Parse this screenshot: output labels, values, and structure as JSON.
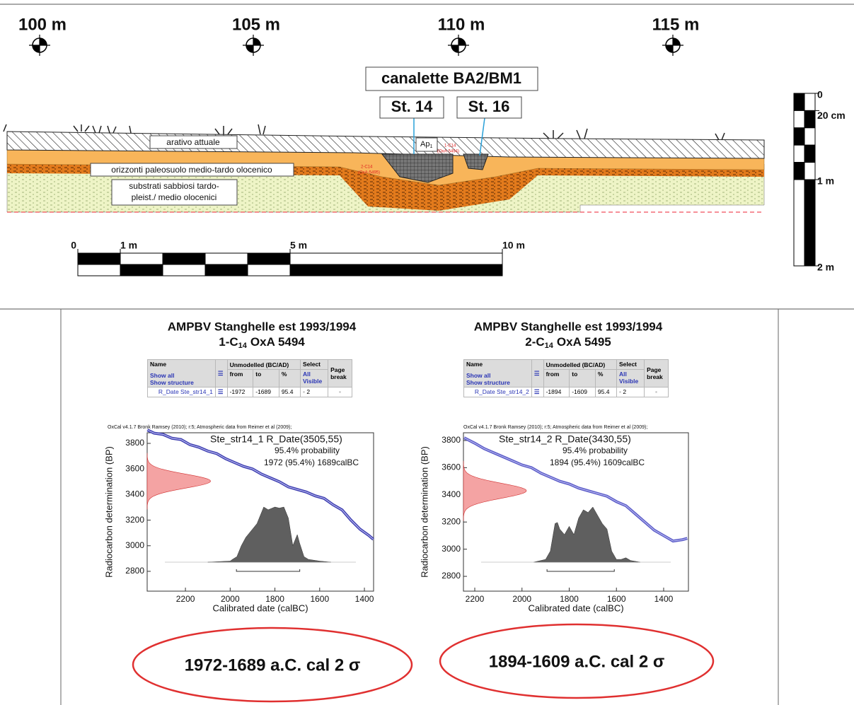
{
  "section": {
    "distance_labels": [
      "100 m",
      "105 m",
      "110 m",
      "115 m"
    ],
    "title": "canalette BA2/BM1",
    "structures": [
      "St. 14",
      "St. 16"
    ],
    "layer_labels": [
      "arativo  attuale",
      "orizzonti paleosuolo medio-tardo olocenico"
    ],
    "substrate_label": [
      "substrati sabbiosi tardo-",
      "pleist./ medio olocenici"
    ],
    "ap_label": {
      "main": "Ap",
      "sub": "1"
    },
    "sample_labels": [
      {
        "name": "1-C14",
        "lab": "(OxA-5494)"
      },
      {
        "name": "2-C14",
        "lab": "(OxA-5495)"
      }
    ],
    "scale_bar": {
      "ticks": [
        0,
        {
          "value": 1,
          "label": "1 m"
        },
        {
          "value": 5,
          "label": "5 m"
        },
        {
          "value": 10,
          "label": "10 m"
        }
      ]
    },
    "vertical_scale": {
      "ticks": [
        0,
        {
          "value": 0.2,
          "label": "20 cm"
        },
        {
          "value": 1,
          "label": "1 m"
        },
        {
          "value": 2,
          "label": "2 m"
        }
      ]
    }
  },
  "chart_data": [
    {
      "type": "calibration",
      "title": "AMPBV Stanghelle est 1993/1994",
      "subtitle": {
        "prefix": "1-C",
        "sub": "14",
        "rest": "OxA 5494"
      },
      "table": {
        "name_header": "Name",
        "show_all": "Show all",
        "show_structure": "Show structure",
        "unmodelled": "Unmodelled (BC/AD)",
        "from": "from",
        "to": "to",
        "pct": "%",
        "select": "Select",
        "all": "All",
        "visible": "Visible",
        "page": "Page",
        "brk": "break",
        "row": {
          "name": "R_Date Ste_str14_1",
          "from": -1972,
          "to": -1689,
          "pct": 95.4,
          "select": 2
        }
      },
      "credit": "OxCal v4.1.7 Bronk Ramsey (2010); r:5; Atmospheric data from Reimer et al (2009);",
      "annotations": [
        "Ste_str14_1 R_Date(3505,55)",
        "95.4% probability",
        "1972 (95.4%) 1689calBC"
      ],
      "x_label": "Calibrated date (calBC)",
      "y_label": "Radiocarbon determination (BP)",
      "xlim": [
        2371,
        1359
      ],
      "xticks": [
        2200,
        2000,
        1800,
        1600,
        1400
      ],
      "ylim": [
        2645,
        3883
      ],
      "yticks": [
        2800,
        3000,
        3200,
        3400,
        3600,
        3800
      ],
      "curve": {
        "color": "#3d3db0",
        "x": [
          2370,
          2340,
          2300,
          2260,
          2220,
          2180,
          2140,
          2100,
          2060,
          2020,
          1980,
          1940,
          1900,
          1860,
          1820,
          1780,
          1740,
          1700,
          1660,
          1620,
          1580,
          1540,
          1500,
          1460,
          1420,
          1380,
          1360
        ],
        "y": [
          3905,
          3880,
          3870,
          3840,
          3830,
          3790,
          3770,
          3740,
          3720,
          3680,
          3650,
          3620,
          3600,
          3560,
          3530,
          3500,
          3460,
          3440,
          3420,
          3390,
          3370,
          3320,
          3280,
          3200,
          3130,
          3080,
          3050
        ]
      },
      "measurement": {
        "mean": 3505,
        "sd": 55,
        "color": "#f4a3a3"
      },
      "density": {
        "color": "#5f5f5f",
        "x": [
          2100,
          2000,
          1990,
          1970,
          1950,
          1930,
          1900,
          1880,
          1860,
          1850,
          1830,
          1800,
          1780,
          1760,
          1740,
          1720,
          1700,
          1690,
          1670,
          1650,
          1600,
          1550
        ],
        "values": [
          0,
          0.02,
          0.05,
          0.1,
          0.3,
          0.45,
          0.6,
          0.7,
          0.9,
          1,
          0.95,
          1,
          0.98,
          1,
          0.8,
          0.3,
          0.5,
          0.35,
          0.1,
          0.05,
          0.02,
          0
        ]
      },
      "range": [
        1972,
        1689
      ]
    },
    {
      "type": "calibration",
      "title": "AMPBV Stanghelle est 1993/1994",
      "subtitle": {
        "prefix": "2-C",
        "sub": "14",
        "rest": "OxA 5495"
      },
      "table": {
        "name_header": "Name",
        "show_all": "Show all",
        "show_structure": "Show structure",
        "unmodelled": "Unmodelled (BC/AD)",
        "from": "from",
        "to": "to",
        "pct": "%",
        "select": "Select",
        "all": "All",
        "visible": "Visible",
        "page": "Page",
        "brk": "break",
        "row": {
          "name": "R_Date Ste_str14_2",
          "from": -1894,
          "to": -1609,
          "pct": 95.4,
          "select": 2
        }
      },
      "credit": "OxCal v4.1.7 Bronk Ramsey (2010); r:5; Atmospheric data from Reimer et al (2009);",
      "annotations": [
        "Ste_str14_2 R_Date(3430,55)",
        "95.4% probability",
        "1894 (95.4%) 1609calBC"
      ],
      "x_label": "Calibrated date (calBC)",
      "y_label": "Radiocarbon determination (BP)",
      "xlim": [
        2248,
        1295
      ],
      "xticks": [
        2200,
        2000,
        1800,
        1600,
        1400
      ],
      "ylim": [
        2691,
        3857
      ],
      "yticks": [
        2800,
        3000,
        3200,
        3400,
        3600,
        3800
      ],
      "curve": {
        "color": "#5a5ac8",
        "x": [
          2245,
          2200,
          2160,
          2120,
          2080,
          2040,
          2000,
          1960,
          1920,
          1880,
          1840,
          1800,
          1760,
          1720,
          1680,
          1640,
          1600,
          1560,
          1520,
          1480,
          1440,
          1400,
          1360,
          1320,
          1300
        ],
        "y": [
          3820,
          3780,
          3740,
          3710,
          3680,
          3650,
          3620,
          3600,
          3560,
          3530,
          3500,
          3480,
          3450,
          3430,
          3410,
          3390,
          3350,
          3320,
          3260,
          3200,
          3140,
          3100,
          3060,
          3070,
          3080
        ]
      },
      "measurement": {
        "mean": 3430,
        "sd": 55,
        "color": "#f4a3a3"
      },
      "density": {
        "color": "#5f5f5f",
        "x": [
          1950,
          1900,
          1880,
          1860,
          1850,
          1840,
          1820,
          1800,
          1780,
          1760,
          1740,
          1720,
          1700,
          1680,
          1660,
          1640,
          1620,
          1600,
          1580,
          1560,
          1540,
          1500
        ],
        "values": [
          0,
          0.05,
          0.2,
          0.7,
          0.72,
          0.6,
          0.5,
          0.65,
          0.5,
          0.8,
          0.95,
          0.9,
          1,
          0.85,
          0.7,
          0.6,
          0.2,
          0.05,
          0.05,
          0.08,
          0.03,
          0
        ]
      },
      "range": [
        1894,
        1609
      ]
    }
  ],
  "results": [
    "1972-1689 a.C. cal 2 σ",
    "1894-1609 a.C. cal 2 σ"
  ]
}
